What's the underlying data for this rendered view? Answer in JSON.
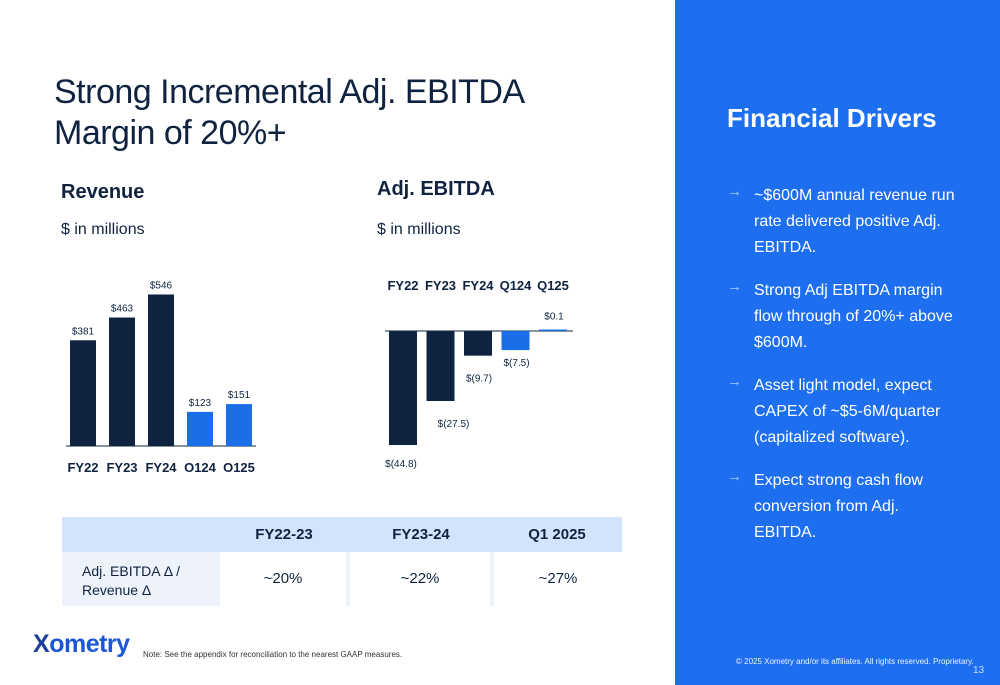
{
  "slide": {
    "title": "Strong Incremental Adj. EBITDA Margin of 20%+",
    "note": "Note: See the appendix for reconciliation to the nearest GAAP measures.",
    "logo": {
      "mark": "X",
      "text": "ometry"
    }
  },
  "chart_data": [
    {
      "type": "bar",
      "title": "Revenue",
      "subtitle": "$ in millions",
      "categories": [
        "FY22",
        "FY23",
        "FY24",
        "O124",
        "O125"
      ],
      "values": [
        381,
        463,
        546,
        123,
        151
      ],
      "labels": [
        "$381",
        "$463",
        "$546",
        "$123",
        "$151"
      ],
      "colors": [
        "#0f2340",
        "#0f2340",
        "#0f2340",
        "#1a6fe8",
        "#1a6fe8"
      ]
    },
    {
      "type": "bar",
      "title": "Adj. EBITDA",
      "subtitle": "$ in millions",
      "categories": [
        "FY22",
        "FY23",
        "FY24",
        "Q124",
        "Q125"
      ],
      "values": [
        -44.8,
        -27.5,
        -9.7,
        -7.5,
        0.1
      ],
      "labels": [
        "$(44.8)",
        "$(27.5)",
        "$(9.7)",
        "$(7.5)",
        "$0.1"
      ],
      "colors": [
        "#0f2340",
        "#0f2340",
        "#0f2340",
        "#1a6fe8",
        "#1a6fe8"
      ]
    }
  ],
  "table": {
    "headers": [
      "",
      "FY22-23",
      "FY23-24",
      "Q1 2025"
    ],
    "rows": [
      {
        "label": "Adj. EBITDA Δ / Revenue Δ",
        "values": [
          "~20%",
          "~22%",
          "~27%"
        ]
      }
    ]
  },
  "drivers": {
    "title": "Financial Drivers",
    "arrow": "→",
    "items": [
      "~$600M annual revenue run rate delivered positive Adj. EBITDA.",
      "Strong Adj EBITDA margin flow through of 20%+ above $600M.",
      "Asset light model, expect CAPEX of ~$5-6M/quarter (capitalized software).",
      "Expect strong cash flow conversion from Adj. EBITDA."
    ],
    "copyright": "© 2025 Xometry and/or its affiliates. All rights reserved. Proprietary.",
    "page_number": "13"
  }
}
